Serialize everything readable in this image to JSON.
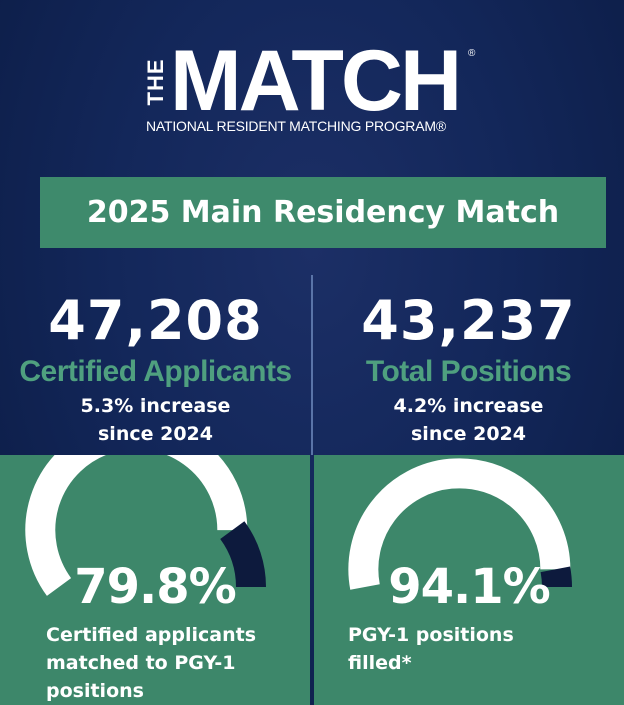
{
  "logo": {
    "the": "THE",
    "match": "MATCH",
    "registered": "®",
    "subtitle": "NATIONAL RESIDENT MATCHING PROGRAM®"
  },
  "banner": {
    "title": "2025 Main Residency Match"
  },
  "stats": {
    "applicants": {
      "number": "47,208",
      "label": "Certified Applicants",
      "change_line1": "5.3% increase",
      "change_line2": "since 2024"
    },
    "positions": {
      "number": "43,237",
      "label": "Total Positions",
      "change_line1": "4.2% increase",
      "change_line2": "since 2024"
    }
  },
  "gauges": {
    "matched": {
      "value_text": "79.8%",
      "fraction": 0.798,
      "caption_line1": "Certified applicants",
      "caption_line2": "matched to PGY-1",
      "caption_line3": "positions"
    },
    "filled": {
      "value_text": "94.1%",
      "fraction": 0.941,
      "caption_line1": "PGY-1 positions",
      "caption_line2": "filled*"
    }
  },
  "colors": {
    "navy": "#13275a",
    "green": "#3e8a6c",
    "green_text": "#4fa07f",
    "gauge_track": "#ffffff",
    "gauge_remainder": "#0d1a3d"
  }
}
